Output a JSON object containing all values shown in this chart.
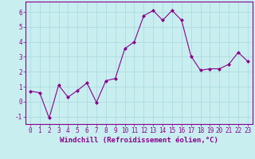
{
  "x": [
    0,
    1,
    2,
    3,
    4,
    5,
    6,
    7,
    8,
    9,
    10,
    11,
    12,
    13,
    14,
    15,
    16,
    17,
    18,
    19,
    20,
    21,
    22,
    23
  ],
  "y": [
    0.7,
    0.6,
    -1.1,
    1.1,
    0.3,
    0.75,
    1.25,
    -0.05,
    1.4,
    1.55,
    3.55,
    4.0,
    5.75,
    6.1,
    5.45,
    6.1,
    5.45,
    3.05,
    2.1,
    2.2,
    2.2,
    2.5,
    3.3,
    2.7
  ],
  "line_color": "#8b008b",
  "marker": "D",
  "marker_size": 2.0,
  "bg_color": "#c8eef0",
  "grid_color": "#a8d8dc",
  "xlabel": "Windchill (Refroidissement éolien,°C)",
  "xlim": [
    -0.5,
    23.5
  ],
  "ylim": [
    -1.5,
    6.7
  ],
  "yticks": [
    -1,
    0,
    1,
    2,
    3,
    4,
    5,
    6
  ],
  "xticks": [
    0,
    1,
    2,
    3,
    4,
    5,
    6,
    7,
    8,
    9,
    10,
    11,
    12,
    13,
    14,
    15,
    16,
    17,
    18,
    19,
    20,
    21,
    22,
    23
  ],
  "tick_fontsize": 5.5,
  "xlabel_fontsize": 6.5,
  "label_color": "#8b008b",
  "spine_color": "#8b008b"
}
